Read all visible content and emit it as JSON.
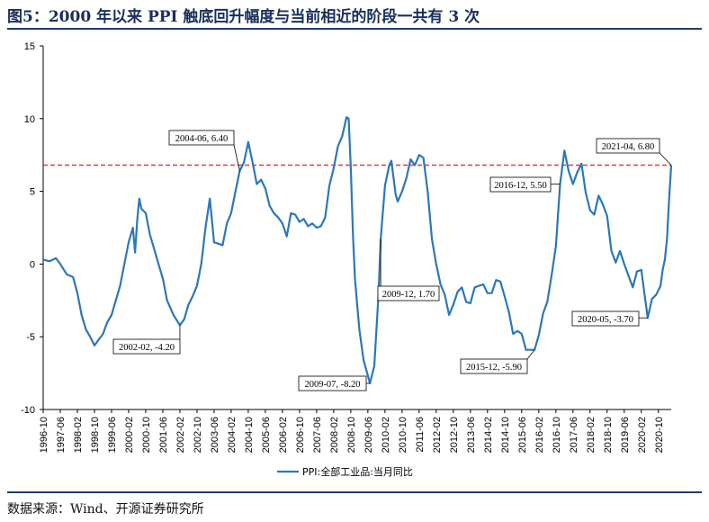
{
  "title": "图5：2000 年以来 PPI 触底回升幅度与当前相近的阶段一共有 3 次",
  "source": "数据来源：Wind、开源证券研究所",
  "colors": {
    "line": "#2b78b8",
    "reference": "#e03c3c",
    "title": "#1a2f5a"
  },
  "chart_data": {
    "type": "line",
    "ylim": [
      -10,
      15
    ],
    "yticks": [
      "15",
      "10",
      "5",
      "0",
      "-5",
      "-10"
    ],
    "xticks": [
      "1996-10",
      "1997-06",
      "1998-02",
      "1998-10",
      "1999-06",
      "2000-02",
      "2000-10",
      "2001-06",
      "2002-02",
      "2002-10",
      "2003-06",
      "2004-02",
      "2004-10",
      "2005-06",
      "2006-02",
      "2006-10",
      "2007-06",
      "2008-02",
      "2008-10",
      "2009-06",
      "2010-02",
      "2010-10",
      "2011-06",
      "2012-02",
      "2012-10",
      "2013-06",
      "2014-02",
      "2014-10",
      "2015-06",
      "2016-02",
      "2016-10",
      "2017-06",
      "2018-02",
      "2018-10",
      "2019-06",
      "2020-02",
      "2020-10"
    ],
    "reference_line": 6.8,
    "legend": "PPI:全部工业品:当月同比",
    "series": [
      {
        "name": "PPI:全部工业品:当月同比",
        "points": [
          [
            "1996-10",
            0.3
          ],
          [
            "1997-01",
            0.2
          ],
          [
            "1997-04",
            0.4
          ],
          [
            "1997-06",
            0.0
          ],
          [
            "1997-09",
            -0.7
          ],
          [
            "1997-12",
            -0.9
          ],
          [
            "1998-02",
            -2.0
          ],
          [
            "1998-04",
            -3.5
          ],
          [
            "1998-06",
            -4.5
          ],
          [
            "1998-08",
            -5.0
          ],
          [
            "1998-10",
            -5.6
          ],
          [
            "1998-12",
            -5.2
          ],
          [
            "1999-02",
            -4.8
          ],
          [
            "1999-04",
            -4.0
          ],
          [
            "1999-06",
            -3.5
          ],
          [
            "1999-08",
            -2.5
          ],
          [
            "1999-10",
            -1.5
          ],
          [
            "1999-12",
            0.0
          ],
          [
            "2000-02",
            1.5
          ],
          [
            "2000-04",
            2.5
          ],
          [
            "2000-05",
            0.8
          ],
          [
            "2000-06",
            3.0
          ],
          [
            "2000-07",
            4.5
          ],
          [
            "2000-08",
            3.8
          ],
          [
            "2000-10",
            3.5
          ],
          [
            "2000-12",
            2.0
          ],
          [
            "2001-02",
            1.0
          ],
          [
            "2001-04",
            0.0
          ],
          [
            "2001-06",
            -1.0
          ],
          [
            "2001-08",
            -2.5
          ],
          [
            "2001-11",
            -3.5
          ],
          [
            "2002-02",
            -4.2
          ],
          [
            "2002-04",
            -3.8
          ],
          [
            "2002-06",
            -2.8
          ],
          [
            "2002-08",
            -2.2
          ],
          [
            "2002-10",
            -1.5
          ],
          [
            "2002-12",
            0.0
          ],
          [
            "2003-02",
            2.5
          ],
          [
            "2003-04",
            4.5
          ],
          [
            "2003-05",
            3.0
          ],
          [
            "2003-06",
            1.5
          ],
          [
            "2003-08",
            1.4
          ],
          [
            "2003-10",
            1.3
          ],
          [
            "2003-12",
            2.8
          ],
          [
            "2004-02",
            3.5
          ],
          [
            "2004-04",
            5.0
          ],
          [
            "2004-06",
            6.4
          ],
          [
            "2004-08",
            7.0
          ],
          [
            "2004-10",
            8.4
          ],
          [
            "2004-12",
            7.0
          ],
          [
            "2005-02",
            5.5
          ],
          [
            "2005-04",
            5.8
          ],
          [
            "2005-06",
            5.2
          ],
          [
            "2005-08",
            4.0
          ],
          [
            "2005-10",
            3.5
          ],
          [
            "2005-12",
            3.2
          ],
          [
            "2006-02",
            2.8
          ],
          [
            "2006-04",
            1.9
          ],
          [
            "2006-06",
            3.5
          ],
          [
            "2006-08",
            3.4
          ],
          [
            "2006-10",
            2.9
          ],
          [
            "2006-12",
            3.1
          ],
          [
            "2007-02",
            2.6
          ],
          [
            "2007-04",
            2.8
          ],
          [
            "2007-06",
            2.5
          ],
          [
            "2007-08",
            2.6
          ],
          [
            "2007-10",
            3.2
          ],
          [
            "2007-12",
            5.4
          ],
          [
            "2008-02",
            6.6
          ],
          [
            "2008-04",
            8.1
          ],
          [
            "2008-06",
            8.8
          ],
          [
            "2008-08",
            10.1
          ],
          [
            "2008-09",
            10.0
          ],
          [
            "2008-10",
            6.6
          ],
          [
            "2008-11",
            2.0
          ],
          [
            "2008-12",
            -1.1
          ],
          [
            "2009-02",
            -4.5
          ],
          [
            "2009-04",
            -6.6
          ],
          [
            "2009-07",
            -8.2
          ],
          [
            "2009-09",
            -7.0
          ],
          [
            "2009-11",
            -2.1
          ],
          [
            "2009-12",
            1.7
          ],
          [
            "2010-02",
            5.4
          ],
          [
            "2010-04",
            6.8
          ],
          [
            "2010-05",
            7.1
          ],
          [
            "2010-07",
            4.8
          ],
          [
            "2010-08",
            4.3
          ],
          [
            "2010-10",
            5.0
          ],
          [
            "2010-12",
            5.9
          ],
          [
            "2011-02",
            7.2
          ],
          [
            "2011-04",
            6.8
          ],
          [
            "2011-06",
            7.5
          ],
          [
            "2011-08",
            7.3
          ],
          [
            "2011-10",
            5.0
          ],
          [
            "2011-12",
            1.7
          ],
          [
            "2012-02",
            0.0
          ],
          [
            "2012-04",
            -1.4
          ],
          [
            "2012-06",
            -2.1
          ],
          [
            "2012-08",
            -3.5
          ],
          [
            "2012-10",
            -2.8
          ],
          [
            "2012-12",
            -1.9
          ],
          [
            "2013-02",
            -1.6
          ],
          [
            "2013-04",
            -2.6
          ],
          [
            "2013-06",
            -2.7
          ],
          [
            "2013-08",
            -1.6
          ],
          [
            "2013-10",
            -1.5
          ],
          [
            "2013-12",
            -1.4
          ],
          [
            "2014-02",
            -2.0
          ],
          [
            "2014-04",
            -2.0
          ],
          [
            "2014-06",
            -1.1
          ],
          [
            "2014-08",
            -1.2
          ],
          [
            "2014-10",
            -2.2
          ],
          [
            "2014-12",
            -3.3
          ],
          [
            "2015-02",
            -4.8
          ],
          [
            "2015-04",
            -4.6
          ],
          [
            "2015-06",
            -4.8
          ],
          [
            "2015-08",
            -5.9
          ],
          [
            "2015-10",
            -5.9
          ],
          [
            "2015-12",
            -5.9
          ],
          [
            "2016-02",
            -4.9
          ],
          [
            "2016-04",
            -3.4
          ],
          [
            "2016-06",
            -2.6
          ],
          [
            "2016-08",
            -0.8
          ],
          [
            "2016-10",
            1.2
          ],
          [
            "2016-12",
            5.5
          ],
          [
            "2017-02",
            7.8
          ],
          [
            "2017-04",
            6.4
          ],
          [
            "2017-06",
            5.5
          ],
          [
            "2017-08",
            6.3
          ],
          [
            "2017-10",
            6.9
          ],
          [
            "2017-12",
            4.9
          ],
          [
            "2018-02",
            3.7
          ],
          [
            "2018-04",
            3.4
          ],
          [
            "2018-06",
            4.7
          ],
          [
            "2018-08",
            4.1
          ],
          [
            "2018-10",
            3.3
          ],
          [
            "2018-12",
            0.9
          ],
          [
            "2019-02",
            0.1
          ],
          [
            "2019-04",
            0.9
          ],
          [
            "2019-06",
            0.0
          ],
          [
            "2019-08",
            -0.8
          ],
          [
            "2019-10",
            -1.6
          ],
          [
            "2019-12",
            -0.5
          ],
          [
            "2020-02",
            -0.4
          ],
          [
            "2020-03",
            -1.5
          ],
          [
            "2020-05",
            -3.7
          ],
          [
            "2020-07",
            -2.4
          ],
          [
            "2020-09",
            -2.1
          ],
          [
            "2020-11",
            -1.5
          ],
          [
            "2020-12",
            -0.4
          ],
          [
            "2021-01",
            0.3
          ],
          [
            "2021-02",
            1.7
          ],
          [
            "2021-03",
            4.4
          ],
          [
            "2021-04",
            6.8
          ]
        ]
      }
    ],
    "annotations": [
      {
        "label": "2004-06, 6.40",
        "x": "2004-06",
        "y": 6.4
      },
      {
        "label": "2002-02, -4.20",
        "x": "2002-02",
        "y": -4.2
      },
      {
        "label": "2009-07, -8.20",
        "x": "2009-07",
        "y": -8.2
      },
      {
        "label": "2009-12, 1.70",
        "x": "2009-12",
        "y": 1.7
      },
      {
        "label": "2015-12, -5.90",
        "x": "2015-12",
        "y": -5.9
      },
      {
        "label": "2016-12, 5.50",
        "x": "2016-12",
        "y": 5.5
      },
      {
        "label": "2020-05, -3.70",
        "x": "2020-05",
        "y": -3.7
      },
      {
        "label": "2021-04, 6.80",
        "x": "2021-04",
        "y": 6.8
      }
    ]
  }
}
